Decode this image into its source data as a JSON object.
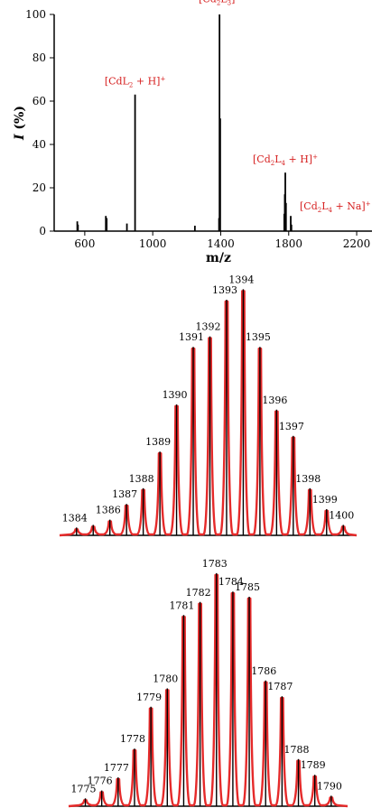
{
  "colors": {
    "annotation": "#d62020",
    "envelope": "#e52a2a",
    "stick": "#000000"
  },
  "chart_data": [
    {
      "type": "bar",
      "title": "",
      "xlabel": "m/z",
      "ylabel": "I (%)",
      "xlim": [
        420,
        2290
      ],
      "ylim": [
        0,
        100
      ],
      "xticks": [
        600,
        1000,
        1400,
        1800,
        2200
      ],
      "yticks": [
        0,
        20,
        40,
        60,
        80,
        100
      ],
      "peaks": [
        {
          "x": 556,
          "y": 4.5
        },
        {
          "x": 560,
          "y": 3
        },
        {
          "x": 724,
          "y": 7
        },
        {
          "x": 729,
          "y": 6
        },
        {
          "x": 848,
          "y": 3.5
        },
        {
          "x": 896,
          "y": 63
        },
        {
          "x": 1248,
          "y": 2.5
        },
        {
          "x": 1390,
          "y": 6
        },
        {
          "x": 1393,
          "y": 100
        },
        {
          "x": 1397,
          "y": 52
        },
        {
          "x": 1774,
          "y": 8
        },
        {
          "x": 1777,
          "y": 17
        },
        {
          "x": 1780,
          "y": 27
        },
        {
          "x": 1784,
          "y": 13
        },
        {
          "x": 1812,
          "y": 7
        },
        {
          "x": 1816,
          "y": 3
        }
      ],
      "annotations": [
        {
          "base": "[CdL",
          "sub": "2",
          "rest": " + H]",
          "sup": "+",
          "x": 896,
          "y": 66
        },
        {
          "base": "[Cd",
          "sub": "2",
          "mid": "L",
          "sub2": "3",
          "rest": "]",
          "sup": "+",
          "x": 1393,
          "y": 104
        },
        {
          "base": "[Cd",
          "sub": "2",
          "mid": "L",
          "sub2": "4",
          "rest": " + H]",
          "sup": "+",
          "x": 1780,
          "y": 30
        },
        {
          "base": "[Cd",
          "sub": "2",
          "mid": "L",
          "sub2": "4",
          "rest": " + Na]",
          "sup": "+",
          "x": 1812,
          "y": 10
        }
      ]
    },
    {
      "type": "bar",
      "title": "",
      "xlim": [
        1383.2,
        1400.8
      ],
      "ylim": [
        0,
        100
      ],
      "peaks": [
        {
          "x": 1384,
          "label": "1384",
          "y": 3
        },
        {
          "x": 1385,
          "label": "",
          "y": 4
        },
        {
          "x": 1386,
          "label": "1386",
          "y": 6
        },
        {
          "x": 1387,
          "label": "1387",
          "y": 12
        },
        {
          "x": 1388,
          "label": "1388",
          "y": 18
        },
        {
          "x": 1389,
          "label": "1389",
          "y": 32
        },
        {
          "x": 1390,
          "label": "1390",
          "y": 50
        },
        {
          "x": 1391,
          "label": "1391",
          "y": 72
        },
        {
          "x": 1392,
          "label": "1392",
          "y": 76
        },
        {
          "x": 1393,
          "label": "1393",
          "y": 90
        },
        {
          "x": 1394,
          "label": "1394",
          "y": 94
        },
        {
          "x": 1395,
          "label": "1395",
          "y": 72
        },
        {
          "x": 1396,
          "label": "1396",
          "y": 48
        },
        {
          "x": 1397,
          "label": "1397",
          "y": 38
        },
        {
          "x": 1398,
          "label": "1398",
          "y": 18
        },
        {
          "x": 1399,
          "label": "1399",
          "y": 10
        },
        {
          "x": 1400,
          "label": "1400",
          "y": 4
        }
      ]
    },
    {
      "type": "bar",
      "title": "",
      "xlim": [
        1774.2,
        1791
      ],
      "ylim": [
        0,
        100
      ],
      "peaks": [
        {
          "x": 1775,
          "label": "1775",
          "y": 3
        },
        {
          "x": 1776,
          "label": "1776",
          "y": 6
        },
        {
          "x": 1777,
          "label": "1777",
          "y": 11
        },
        {
          "x": 1778,
          "label": "1778",
          "y": 22
        },
        {
          "x": 1779,
          "label": "1779",
          "y": 38
        },
        {
          "x": 1780,
          "label": "1780",
          "y": 45
        },
        {
          "x": 1781,
          "label": "1781",
          "y": 73
        },
        {
          "x": 1782,
          "label": "1782",
          "y": 78
        },
        {
          "x": 1783,
          "label": "1783",
          "y": 89
        },
        {
          "x": 1784,
          "label": "1784",
          "y": 82
        },
        {
          "x": 1785,
          "label": "1785",
          "y": 80
        },
        {
          "x": 1786,
          "label": "1786",
          "y": 48
        },
        {
          "x": 1787,
          "label": "1787",
          "y": 42
        },
        {
          "x": 1788,
          "label": "1788",
          "y": 18
        },
        {
          "x": 1789,
          "label": "1789",
          "y": 12
        },
        {
          "x": 1790,
          "label": "1790",
          "y": 4
        }
      ]
    }
  ]
}
